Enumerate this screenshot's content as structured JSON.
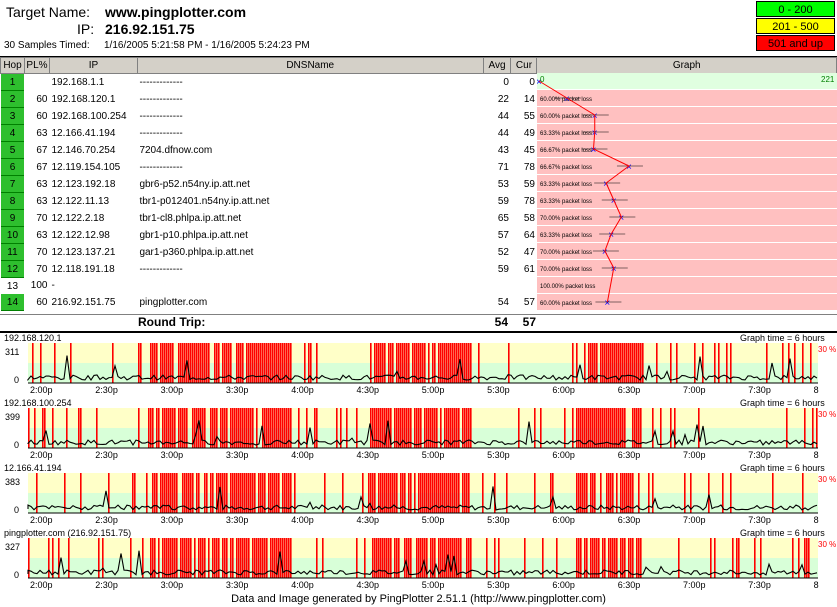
{
  "header": {
    "target_label": "Target Name:",
    "target_value": "www.pingplotter.com",
    "ip_label": "IP:",
    "ip_value": "216.92.151.75",
    "samples": "30 Samples Timed:",
    "time_range": "1/16/2005 5:21:58 PM - 1/16/2005 5:24:23 PM"
  },
  "legend": [
    {
      "label": "0 - 200",
      "color": "#00ff00"
    },
    {
      "label": "201 - 500",
      "color": "#ffff00"
    },
    {
      "label": "501 and up",
      "color": "#ff0000"
    }
  ],
  "columns": {
    "hop": "Hop",
    "pl": "PL%",
    "ip": "IP",
    "dns": "DNSName",
    "avg": "Avg",
    "cur": "Cur",
    "graph": "Graph"
  },
  "graph_scale_max": "221",
  "hops": [
    {
      "hop": "1",
      "pl": "",
      "ip": "192.168.1.1",
      "dns": "-------------",
      "avg": "0",
      "cur": "0",
      "loss": "",
      "lat": 0
    },
    {
      "hop": "2",
      "pl": "60",
      "ip": "192.168.120.1",
      "dns": "-------------",
      "avg": "22",
      "cur": "14",
      "loss": "60.00% packet loss",
      "lat": 22
    },
    {
      "hop": "3",
      "pl": "60",
      "ip": "192.168.100.254",
      "dns": "-------------",
      "avg": "44",
      "cur": "55",
      "loss": "60.00% packet loss",
      "lat": 44
    },
    {
      "hop": "4",
      "pl": "63",
      "ip": "12.166.41.194",
      "dns": "-------------",
      "avg": "44",
      "cur": "49",
      "loss": "63.33% packet loss",
      "lat": 44
    },
    {
      "hop": "5",
      "pl": "67",
      "ip": "12.146.70.254",
      "dns": "7204.dfnow.com",
      "avg": "43",
      "cur": "45",
      "loss": "66.67% packet loss",
      "lat": 43
    },
    {
      "hop": "6",
      "pl": "67",
      "ip": "12.119.154.105",
      "dns": "-------------",
      "avg": "71",
      "cur": "78",
      "loss": "66.67% packet loss",
      "lat": 71
    },
    {
      "hop": "7",
      "pl": "63",
      "ip": "12.123.192.18",
      "dns": "gbr6-p52.n54ny.ip.att.net",
      "avg": "53",
      "cur": "59",
      "loss": "63.33% packet loss",
      "lat": 53
    },
    {
      "hop": "8",
      "pl": "63",
      "ip": "12.122.11.13",
      "dns": "tbr1-p012401.n54ny.ip.att.net",
      "avg": "59",
      "cur": "78",
      "loss": "63.33% packet loss",
      "lat": 59
    },
    {
      "hop": "9",
      "pl": "70",
      "ip": "12.122.2.18",
      "dns": "tbr1-cl8.phlpa.ip.att.net",
      "avg": "65",
      "cur": "58",
      "loss": "70.00% packet loss",
      "lat": 65
    },
    {
      "hop": "10",
      "pl": "63",
      "ip": "12.122.12.98",
      "dns": "gbr1-p10.phlpa.ip.att.net",
      "avg": "57",
      "cur": "64",
      "loss": "63.33% packet loss",
      "lat": 57
    },
    {
      "hop": "11",
      "pl": "70",
      "ip": "12.123.137.21",
      "dns": "gar1-p360.phlpa.ip.att.net",
      "avg": "52",
      "cur": "47",
      "loss": "70.00% packet loss",
      "lat": 52
    },
    {
      "hop": "12",
      "pl": "70",
      "ip": "12.118.191.18",
      "dns": "-------------",
      "avg": "59",
      "cur": "61",
      "loss": "70.00% packet loss",
      "lat": 59
    },
    {
      "hop": "13",
      "pl": "100",
      "ip": "-",
      "dns": "",
      "avg": "",
      "cur": "",
      "loss": "100.00% packet loss",
      "lat": null
    },
    {
      "hop": "14",
      "pl": "60",
      "ip": "216.92.151.75",
      "dns": "pingplotter.com",
      "avg": "54",
      "cur": "57",
      "loss": "60.00% packet loss",
      "lat": 54
    }
  ],
  "round_trip": {
    "label": "Round Trip:",
    "avg": "54",
    "cur": "57"
  },
  "time_graphs": [
    {
      "title": "192.168.120.1",
      "ymax": "311",
      "ymin": "0",
      "note": "Graph time = 6 hours",
      "pct": "30 %"
    },
    {
      "title": "192.168.100.254",
      "ymax": "399",
      "ymin": "0",
      "note": "Graph time = 6 hours",
      "pct": "30 %"
    },
    {
      "title": "12.166.41.194",
      "ymax": "383",
      "ymin": "0",
      "note": "Graph time = 6 hours",
      "pct": "30 %"
    },
    {
      "title": "pingplotter.com (216.92.151.75)",
      "ymax": "327",
      "ymin": "0",
      "note": "Graph time = 6 hours",
      "pct": "30 %"
    }
  ],
  "time_ticks": [
    "2:00p",
    "2:30p",
    "3:00p",
    "3:30p",
    "4:00p",
    "4:30p",
    "5:00p",
    "5:30p",
    "6:00p",
    "6:30p",
    "7:00p",
    "7:30p",
    "8"
  ],
  "footer": "Data and Image generated by PingPlotter 2.51.1 (http://www.pingplotter.com)"
}
